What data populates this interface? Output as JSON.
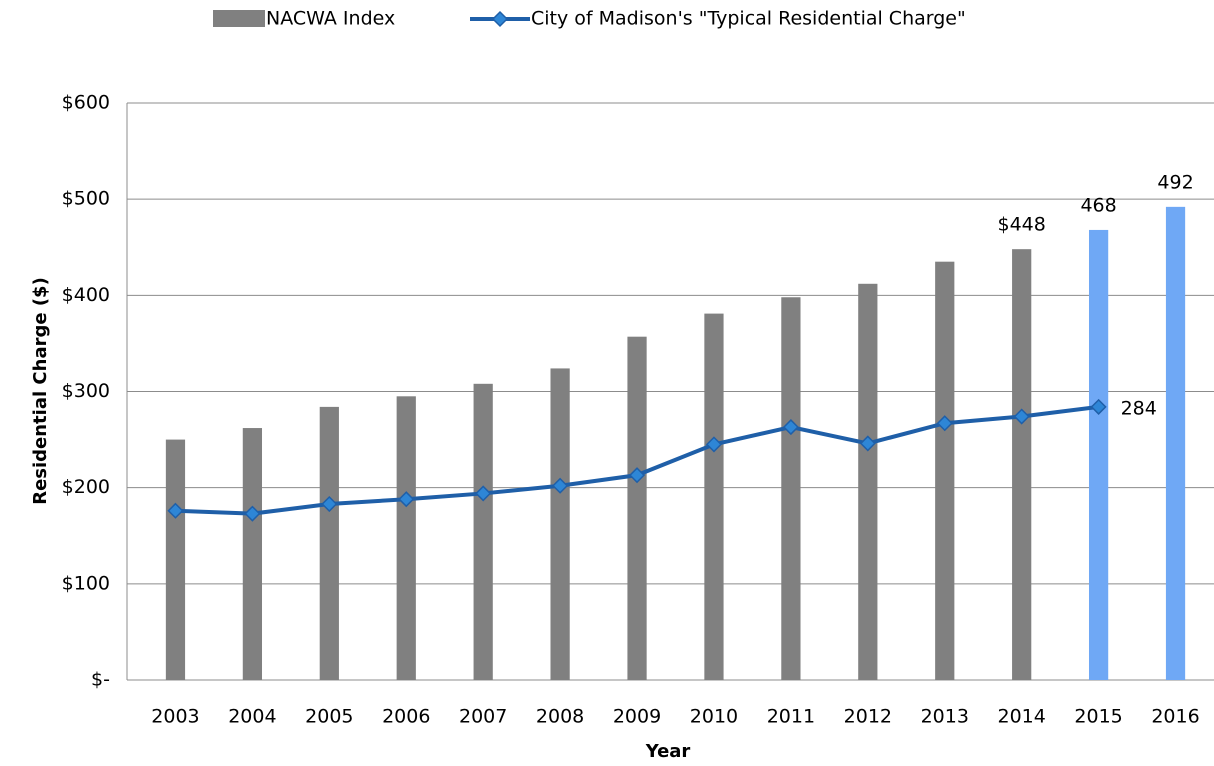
{
  "chart_data": {
    "type": "bar",
    "categories": [
      "2003",
      "2004",
      "2005",
      "2006",
      "2007",
      "2008",
      "2009",
      "2010",
      "2011",
      "2012",
      "2013",
      "2014",
      "2015",
      "2016"
    ],
    "series": [
      {
        "name": "NACWA Index",
        "type": "bar",
        "color": "#808080",
        "colors": [
          "#808080",
          "#808080",
          "#808080",
          "#808080",
          "#808080",
          "#808080",
          "#808080",
          "#808080",
          "#808080",
          "#808080",
          "#808080",
          "#808080",
          "#6fa8f5",
          "#6fa8f5"
        ],
        "values": [
          250,
          262,
          284,
          295,
          308,
          324,
          357,
          381,
          398,
          412,
          435,
          448,
          468,
          492
        ],
        "value_labels": [
          null,
          null,
          null,
          null,
          null,
          null,
          null,
          null,
          null,
          null,
          null,
          "$448",
          "468",
          "492"
        ]
      },
      {
        "name": "City of Madison's \"Typical Residential Charge\"",
        "type": "line",
        "color": "#1f5fa8",
        "marker_color": "#2e86d6",
        "values": [
          176,
          173,
          183,
          188,
          194,
          202,
          213,
          245,
          263,
          246,
          267,
          274,
          284,
          null
        ],
        "value_labels": [
          null,
          null,
          null,
          null,
          null,
          null,
          null,
          null,
          null,
          null,
          null,
          null,
          "284",
          null
        ]
      }
    ],
    "ylabel": "Residential Charge ($)",
    "xlabel": "Year",
    "ylim": [
      0,
      600
    ],
    "yticks": [
      {
        "value": 0,
        "label": "$-"
      },
      {
        "value": 100,
        "label": "$100"
      },
      {
        "value": 200,
        "label": "$200"
      },
      {
        "value": 300,
        "label": "$300"
      },
      {
        "value": 400,
        "label": "$400"
      },
      {
        "value": 500,
        "label": "$500"
      },
      {
        "value": 600,
        "label": "$600"
      }
    ],
    "grid": true,
    "legend": "top"
  }
}
